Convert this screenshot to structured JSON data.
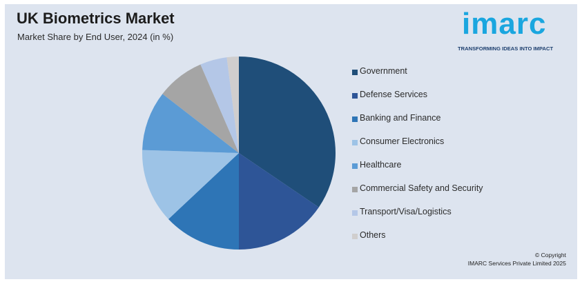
{
  "header": {
    "title": "UK Biometrics Market",
    "subtitle": "Market Share by End User, 2024 (in %)"
  },
  "logo": {
    "word": "imarc",
    "tagline": "TRANSFORMING IDEAS INTO IMPACT",
    "color": "#1aa6df",
    "tagline_color": "#1d3f6e"
  },
  "footer": {
    "copyright_line1": "© Copyright",
    "copyright_line2": "IMARC Services Private Limited 2025"
  },
  "chart_data": {
    "type": "pie",
    "title": "UK Biometrics Market",
    "subtitle": "Market Share by End User, 2024 (in %)",
    "categories": [
      "Government",
      "Defense Services",
      "Banking and Finance",
      "Consumer Electronics",
      "Healthcare",
      "Commercial Safety and Security",
      "Transport/Visa/Logistics",
      "Others"
    ],
    "values": [
      34.5,
      15.5,
      13.0,
      12.5,
      10.0,
      8.0,
      4.5,
      2.0
    ],
    "colors": [
      "#1f4e79",
      "#2e5597",
      "#2e75b6",
      "#9dc3e6",
      "#5b9bd5",
      "#a5a5a5",
      "#b4c7e7",
      "#d0cece"
    ],
    "legend_position": "right",
    "start_angle": "12 o'clock",
    "direction": "clockwise"
  }
}
